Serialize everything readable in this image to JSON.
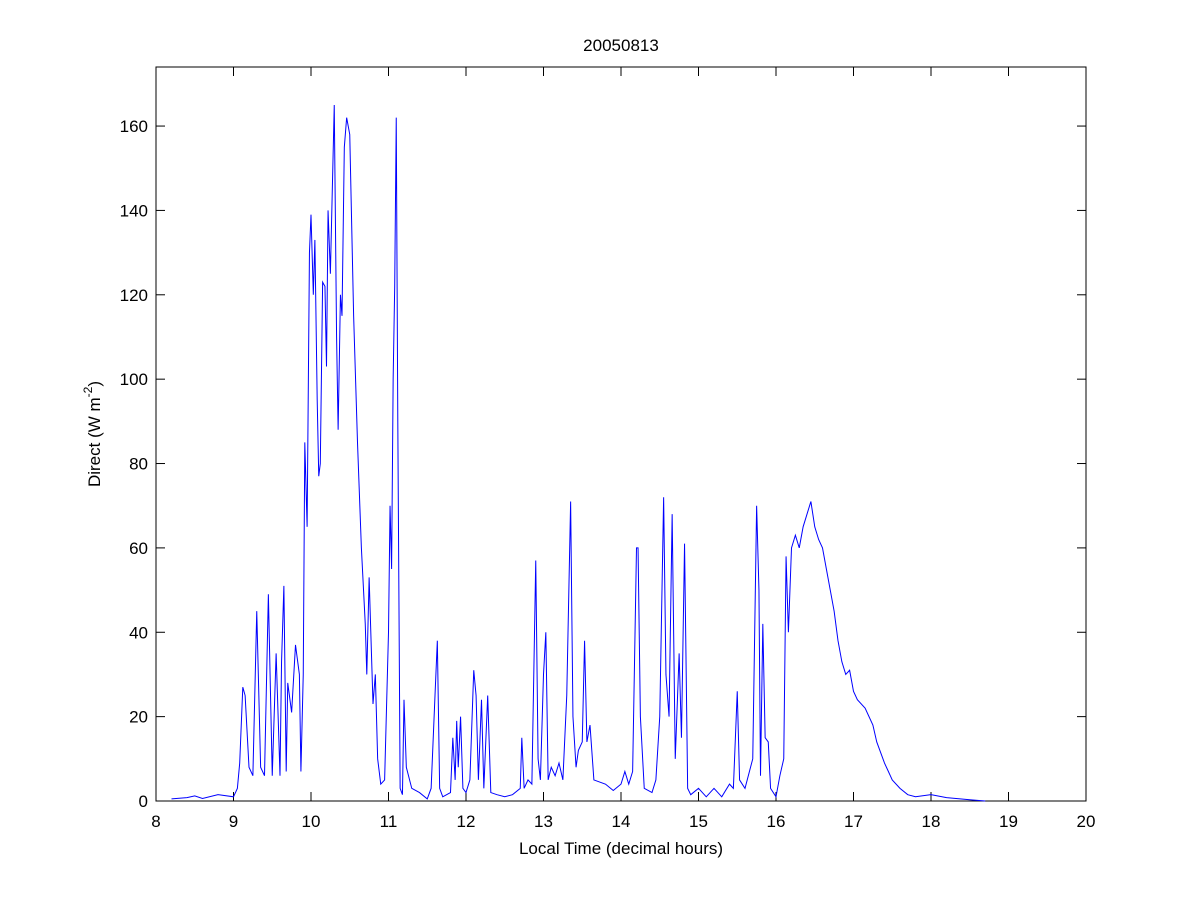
{
  "chart_data": {
    "type": "line",
    "title": "20050813",
    "xlabel": "Local Time (decimal hours)",
    "ylabel": {
      "text": "Direct (W m",
      "sup": "-2",
      "end": ")"
    },
    "x": [
      8.2,
      8.4,
      8.5,
      8.6,
      8.8,
      9.0,
      9.05,
      9.08,
      9.12,
      9.15,
      9.2,
      9.25,
      9.3,
      9.35,
      9.4,
      9.45,
      9.5,
      9.55,
      9.6,
      9.62,
      9.65,
      9.68,
      9.7,
      9.75,
      9.8,
      9.85,
      9.87,
      9.9,
      9.92,
      9.95,
      9.98,
      10.0,
      10.03,
      10.05,
      10.08,
      10.1,
      10.12,
      10.15,
      10.18,
      10.2,
      10.22,
      10.25,
      10.3,
      10.33,
      10.35,
      10.38,
      10.4,
      10.43,
      10.46,
      10.5,
      10.55,
      10.6,
      10.65,
      10.7,
      10.72,
      10.75,
      10.78,
      10.8,
      10.83,
      10.86,
      10.9,
      10.95,
      11.0,
      11.02,
      11.04,
      11.06,
      11.08,
      11.1,
      11.12,
      11.15,
      11.18,
      11.2,
      11.23,
      11.3,
      11.4,
      11.5,
      11.55,
      11.6,
      11.63,
      11.66,
      11.7,
      11.8,
      11.83,
      11.86,
      11.88,
      11.9,
      11.93,
      11.96,
      12.0,
      12.05,
      12.1,
      12.13,
      12.16,
      12.2,
      12.23,
      12.28,
      12.32,
      12.4,
      12.5,
      12.6,
      12.7,
      12.72,
      12.75,
      12.8,
      12.85,
      12.9,
      12.93,
      12.96,
      13.0,
      13.03,
      13.06,
      13.1,
      13.15,
      13.2,
      13.25,
      13.3,
      13.35,
      13.38,
      13.42,
      13.45,
      13.5,
      13.53,
      13.56,
      13.6,
      13.65,
      13.8,
      13.9,
      14.0,
      14.05,
      14.1,
      14.15,
      14.2,
      14.22,
      14.25,
      14.3,
      14.4,
      14.45,
      14.5,
      14.55,
      14.58,
      14.62,
      14.66,
      14.7,
      14.75,
      14.78,
      14.82,
      14.86,
      14.9,
      15.0,
      15.1,
      15.2,
      15.3,
      15.4,
      15.45,
      15.5,
      15.53,
      15.6,
      15.7,
      15.75,
      15.78,
      15.8,
      15.83,
      15.86,
      15.9,
      15.93,
      16.0,
      16.05,
      16.1,
      16.13,
      16.16,
      16.2,
      16.25,
      16.3,
      16.35,
      16.45,
      16.5,
      16.55,
      16.6,
      16.65,
      16.7,
      16.75,
      16.8,
      16.85,
      16.9,
      16.95,
      17.0,
      17.05,
      17.15,
      17.25,
      17.3,
      17.4,
      17.5,
      17.6,
      17.7,
      17.8,
      18.0,
      18.2,
      18.5,
      18.7
    ],
    "series": [
      {
        "color": "#0000ff",
        "values": [
          0.5,
          0.8,
          1.2,
          0.6,
          1.5,
          1,
          3,
          9,
          27,
          25,
          8,
          6,
          45,
          8,
          6,
          49,
          6,
          35,
          6,
          33,
          51,
          7,
          28,
          21,
          37,
          30,
          7,
          30,
          85,
          65,
          130,
          139,
          120,
          133,
          95,
          77,
          80,
          123,
          122,
          103,
          140,
          125,
          165,
          110,
          88,
          120,
          115,
          155,
          162,
          158,
          115,
          85,
          60,
          42,
          30,
          53,
          35,
          23,
          30,
          10,
          4,
          5,
          40,
          70,
          55,
          100,
          122,
          162,
          90,
          3,
          1.5,
          24,
          8,
          3,
          2,
          0.5,
          3,
          25,
          38,
          3,
          1,
          2,
          15,
          5,
          19,
          8,
          20,
          3,
          2,
          5,
          31,
          25,
          5,
          24,
          3,
          25,
          2,
          1.5,
          1,
          1.5,
          3,
          15,
          3,
          5,
          4,
          57,
          10,
          5,
          30,
          40,
          5,
          8,
          6,
          9,
          5,
          25,
          71,
          20,
          8,
          12,
          14,
          38,
          14,
          18,
          5,
          4,
          2.5,
          4,
          7,
          4,
          7,
          60,
          60,
          20,
          3,
          2,
          5,
          20,
          72,
          30,
          20,
          68,
          10,
          35,
          15,
          61,
          3,
          1.5,
          3,
          1,
          3,
          1,
          4,
          3,
          26,
          5,
          3,
          10,
          70,
          50,
          6,
          42,
          15,
          14,
          3,
          1,
          6,
          10,
          58,
          40,
          60,
          63,
          60,
          65,
          71,
          65,
          62,
          60,
          55,
          50,
          45,
          38,
          33,
          30,
          31,
          26,
          24,
          22,
          18,
          14,
          9,
          5,
          3,
          1.5,
          1,
          1.5,
          0.8,
          0.3,
          0
        ]
      }
    ],
    "xlim": [
      8,
      20
    ],
    "xticks": [
      8,
      9,
      10,
      11,
      12,
      13,
      14,
      15,
      16,
      17,
      18,
      19,
      20
    ],
    "ylim": [
      0,
      174
    ],
    "yticks": [
      0,
      20,
      40,
      60,
      80,
      100,
      120,
      140,
      160
    ]
  }
}
